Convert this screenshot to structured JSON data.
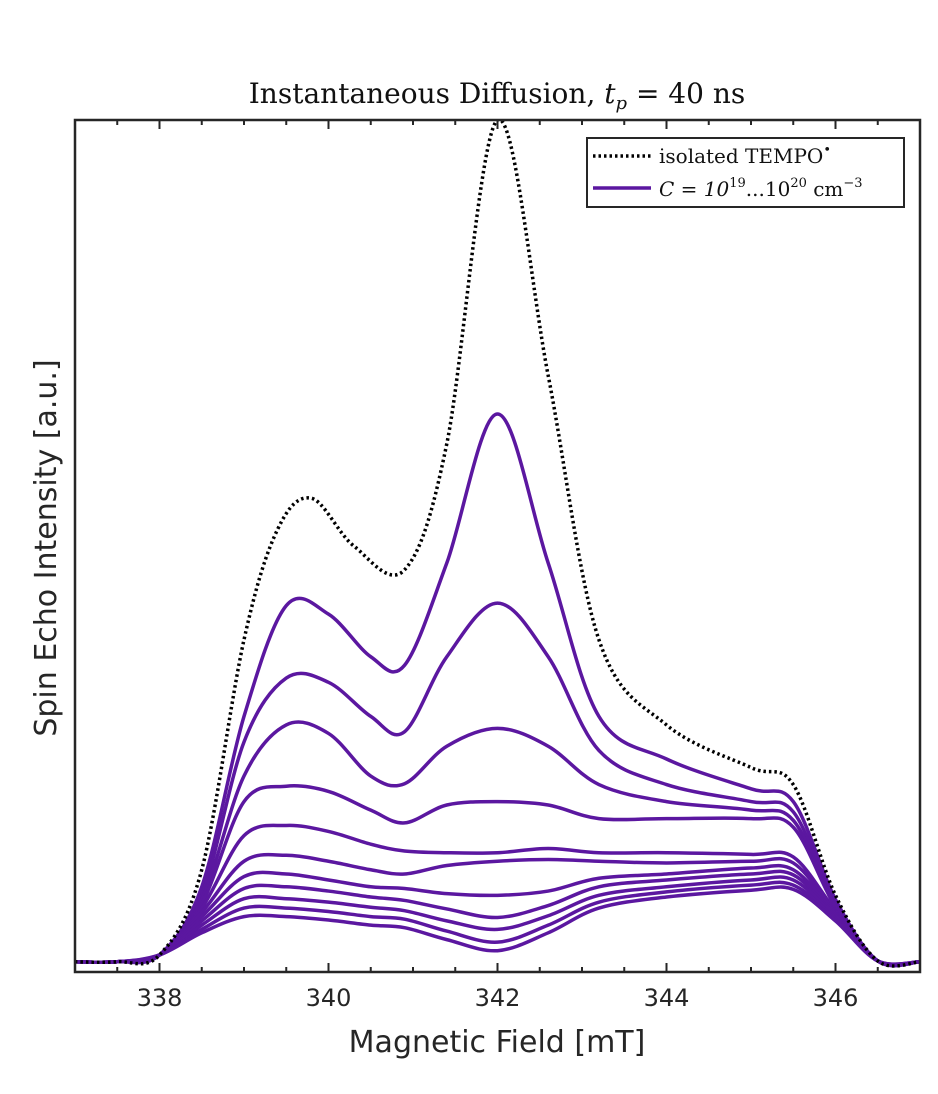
{
  "chart_data": {
    "type": "line",
    "title": {
      "prefix": "Instantaneous Diffusion, ",
      "var": "t",
      "sub": "p",
      "suffix": " = 40 ns"
    },
    "xlabel": "Magnetic Field [mT]",
    "ylabel": "Spin Echo Intensity [a.u.]",
    "xlim": [
      337,
      347
    ],
    "ylim": [
      0,
      1
    ],
    "x_ticks": [
      338,
      340,
      342,
      344,
      346
    ],
    "x_tick_labels": [
      "338",
      "340",
      "342",
      "344",
      "346"
    ],
    "legend": {
      "placement": "top-right",
      "entries": [
        {
          "label": "isolated TEMPO",
          "sup": "•",
          "style": "dotted",
          "color": "#000000"
        },
        {
          "label_parts": [
            "C = 10",
            "19",
            "...10",
            "20",
            " cm",
            "−3"
          ],
          "style": "solid",
          "color": "#5b17a0"
        }
      ]
    },
    "series": [
      {
        "style": "dotted",
        "color": "#000000",
        "x": [
          337,
          337.5,
          338,
          338.5,
          339,
          339.4,
          339.8,
          340.3,
          340.9,
          341.4,
          342.0,
          342.6,
          343.2,
          344.0,
          345.0,
          345.5,
          346.0,
          346.5,
          347
        ],
        "y": [
          0.012,
          0.012,
          0.02,
          0.12,
          0.39,
          0.52,
          0.556,
          0.5,
          0.472,
          0.62,
          1.0,
          0.7,
          0.39,
          0.29,
          0.24,
          0.22,
          0.09,
          0.013,
          0.012
        ]
      },
      {
        "style": "solid",
        "color": "#5b17a0",
        "x": [
          337,
          337.5,
          338,
          338.5,
          339,
          339.5,
          340.0,
          340.5,
          340.9,
          341.4,
          342.0,
          342.6,
          343.2,
          344.0,
          345.0,
          345.5,
          346.0,
          346.5,
          347
        ],
        "y": [
          0.012,
          0.012,
          0.02,
          0.1,
          0.3,
          0.43,
          0.42,
          0.37,
          0.36,
          0.48,
          0.655,
          0.48,
          0.3,
          0.25,
          0.215,
          0.2,
          0.085,
          0.013,
          0.012
        ]
      },
      {
        "style": "solid",
        "color": "#5b17a0",
        "x": [
          337,
          337.5,
          338,
          338.5,
          339,
          339.5,
          340.0,
          340.5,
          340.9,
          341.4,
          342.0,
          342.6,
          343.2,
          344.0,
          345.0,
          345.5,
          346.0,
          346.5,
          347
        ],
        "y": [
          0.012,
          0.012,
          0.02,
          0.09,
          0.27,
          0.345,
          0.34,
          0.3,
          0.282,
          0.37,
          0.433,
          0.37,
          0.26,
          0.22,
          0.2,
          0.188,
          0.08,
          0.013,
          0.012
        ]
      },
      {
        "style": "solid",
        "color": "#5b17a0",
        "x": [
          337,
          337.5,
          338,
          338.5,
          339,
          339.5,
          340.0,
          340.5,
          340.9,
          341.4,
          342.0,
          342.6,
          343.2,
          344.0,
          345.0,
          345.5,
          346.0,
          346.5,
          347
        ],
        "y": [
          0.012,
          0.012,
          0.02,
          0.085,
          0.23,
          0.29,
          0.28,
          0.23,
          0.221,
          0.265,
          0.286,
          0.265,
          0.22,
          0.2,
          0.19,
          0.178,
          0.078,
          0.013,
          0.012
        ]
      },
      {
        "style": "solid",
        "color": "#5b17a0",
        "x": [
          337,
          337.5,
          338,
          338.5,
          339,
          339.5,
          340.0,
          340.5,
          340.9,
          341.4,
          342.0,
          342.6,
          343.2,
          344.0,
          345.0,
          345.5,
          346.0,
          346.5,
          347
        ],
        "y": [
          0.012,
          0.012,
          0.02,
          0.08,
          0.2,
          0.218,
          0.212,
          0.19,
          0.175,
          0.196,
          0.2,
          0.196,
          0.18,
          0.18,
          0.18,
          0.17,
          0.076,
          0.013,
          0.012
        ]
      },
      {
        "style": "solid",
        "color": "#5b17a0",
        "x": [
          337,
          337.5,
          338,
          338.5,
          339,
          339.5,
          340.0,
          340.5,
          340.9,
          341.4,
          342.0,
          342.6,
          343.2,
          344.0,
          345.0,
          345.5,
          346.0,
          346.5,
          347
        ],
        "y": [
          0.012,
          0.012,
          0.02,
          0.075,
          0.16,
          0.172,
          0.165,
          0.15,
          0.142,
          0.14,
          0.14,
          0.145,
          0.14,
          0.14,
          0.138,
          0.135,
          0.072,
          0.013,
          0.012
        ]
      },
      {
        "style": "solid",
        "color": "#5b17a0",
        "x": [
          337,
          337.5,
          338,
          338.5,
          339,
          339.5,
          340.0,
          340.5,
          340.9,
          341.4,
          342.0,
          342.6,
          343.2,
          344.0,
          345.0,
          345.5,
          346.0,
          346.5,
          347
        ],
        "y": [
          0.012,
          0.012,
          0.02,
          0.07,
          0.13,
          0.137,
          0.13,
          0.12,
          0.115,
          0.125,
          0.13,
          0.132,
          0.13,
          0.128,
          0.13,
          0.128,
          0.07,
          0.013,
          0.012
        ]
      },
      {
        "style": "solid",
        "color": "#5b17a0",
        "x": [
          337,
          337.5,
          338,
          338.5,
          339,
          339.5,
          340.0,
          340.5,
          340.9,
          341.4,
          342.0,
          342.6,
          343.2,
          344.0,
          345.0,
          345.5,
          346.0,
          346.5,
          347
        ],
        "y": [
          0.012,
          0.012,
          0.02,
          0.065,
          0.112,
          0.115,
          0.108,
          0.1,
          0.098,
          0.092,
          0.09,
          0.095,
          0.11,
          0.115,
          0.122,
          0.12,
          0.068,
          0.013,
          0.012
        ]
      },
      {
        "style": "solid",
        "color": "#5b17a0",
        "x": [
          337,
          337.5,
          338,
          338.5,
          339,
          339.5,
          340.0,
          340.5,
          340.9,
          341.4,
          342.0,
          342.6,
          343.2,
          344.0,
          345.0,
          345.5,
          346.0,
          346.5,
          347
        ],
        "y": [
          0.012,
          0.012,
          0.02,
          0.06,
          0.098,
          0.1,
          0.095,
          0.088,
          0.084,
          0.074,
          0.064,
          0.078,
          0.1,
          0.108,
          0.115,
          0.114,
          0.066,
          0.013,
          0.012
        ]
      },
      {
        "style": "solid",
        "color": "#5b17a0",
        "x": [
          337,
          337.5,
          338,
          338.5,
          339,
          339.5,
          340.0,
          340.5,
          340.9,
          341.4,
          342.0,
          342.6,
          343.2,
          344.0,
          345.0,
          345.5,
          346.0,
          346.5,
          347
        ],
        "y": [
          0.012,
          0.012,
          0.02,
          0.055,
          0.086,
          0.086,
          0.082,
          0.076,
          0.072,
          0.06,
          0.05,
          0.066,
          0.09,
          0.1,
          0.108,
          0.108,
          0.064,
          0.013,
          0.012
        ]
      },
      {
        "style": "solid",
        "color": "#5b17a0",
        "x": [
          337,
          337.5,
          338,
          338.5,
          339,
          339.5,
          340.0,
          340.5,
          340.9,
          341.4,
          342.0,
          342.6,
          343.2,
          344.0,
          345.0,
          345.5,
          346.0,
          346.5,
          347
        ],
        "y": [
          0.012,
          0.012,
          0.02,
          0.05,
          0.075,
          0.075,
          0.071,
          0.065,
          0.062,
          0.048,
          0.035,
          0.055,
          0.082,
          0.094,
          0.102,
          0.102,
          0.062,
          0.013,
          0.012
        ]
      },
      {
        "style": "solid",
        "color": "#5b17a0",
        "x": [
          337,
          337.5,
          338,
          338.5,
          339,
          339.5,
          340.0,
          340.5,
          340.9,
          341.4,
          342.0,
          342.6,
          343.2,
          344.0,
          345.0,
          345.5,
          346.0,
          346.5,
          347
        ],
        "y": [
          0.012,
          0.012,
          0.02,
          0.046,
          0.065,
          0.065,
          0.061,
          0.055,
          0.052,
          0.038,
          0.025,
          0.046,
          0.075,
          0.088,
          0.096,
          0.097,
          0.06,
          0.013,
          0.012
        ]
      }
    ]
  }
}
